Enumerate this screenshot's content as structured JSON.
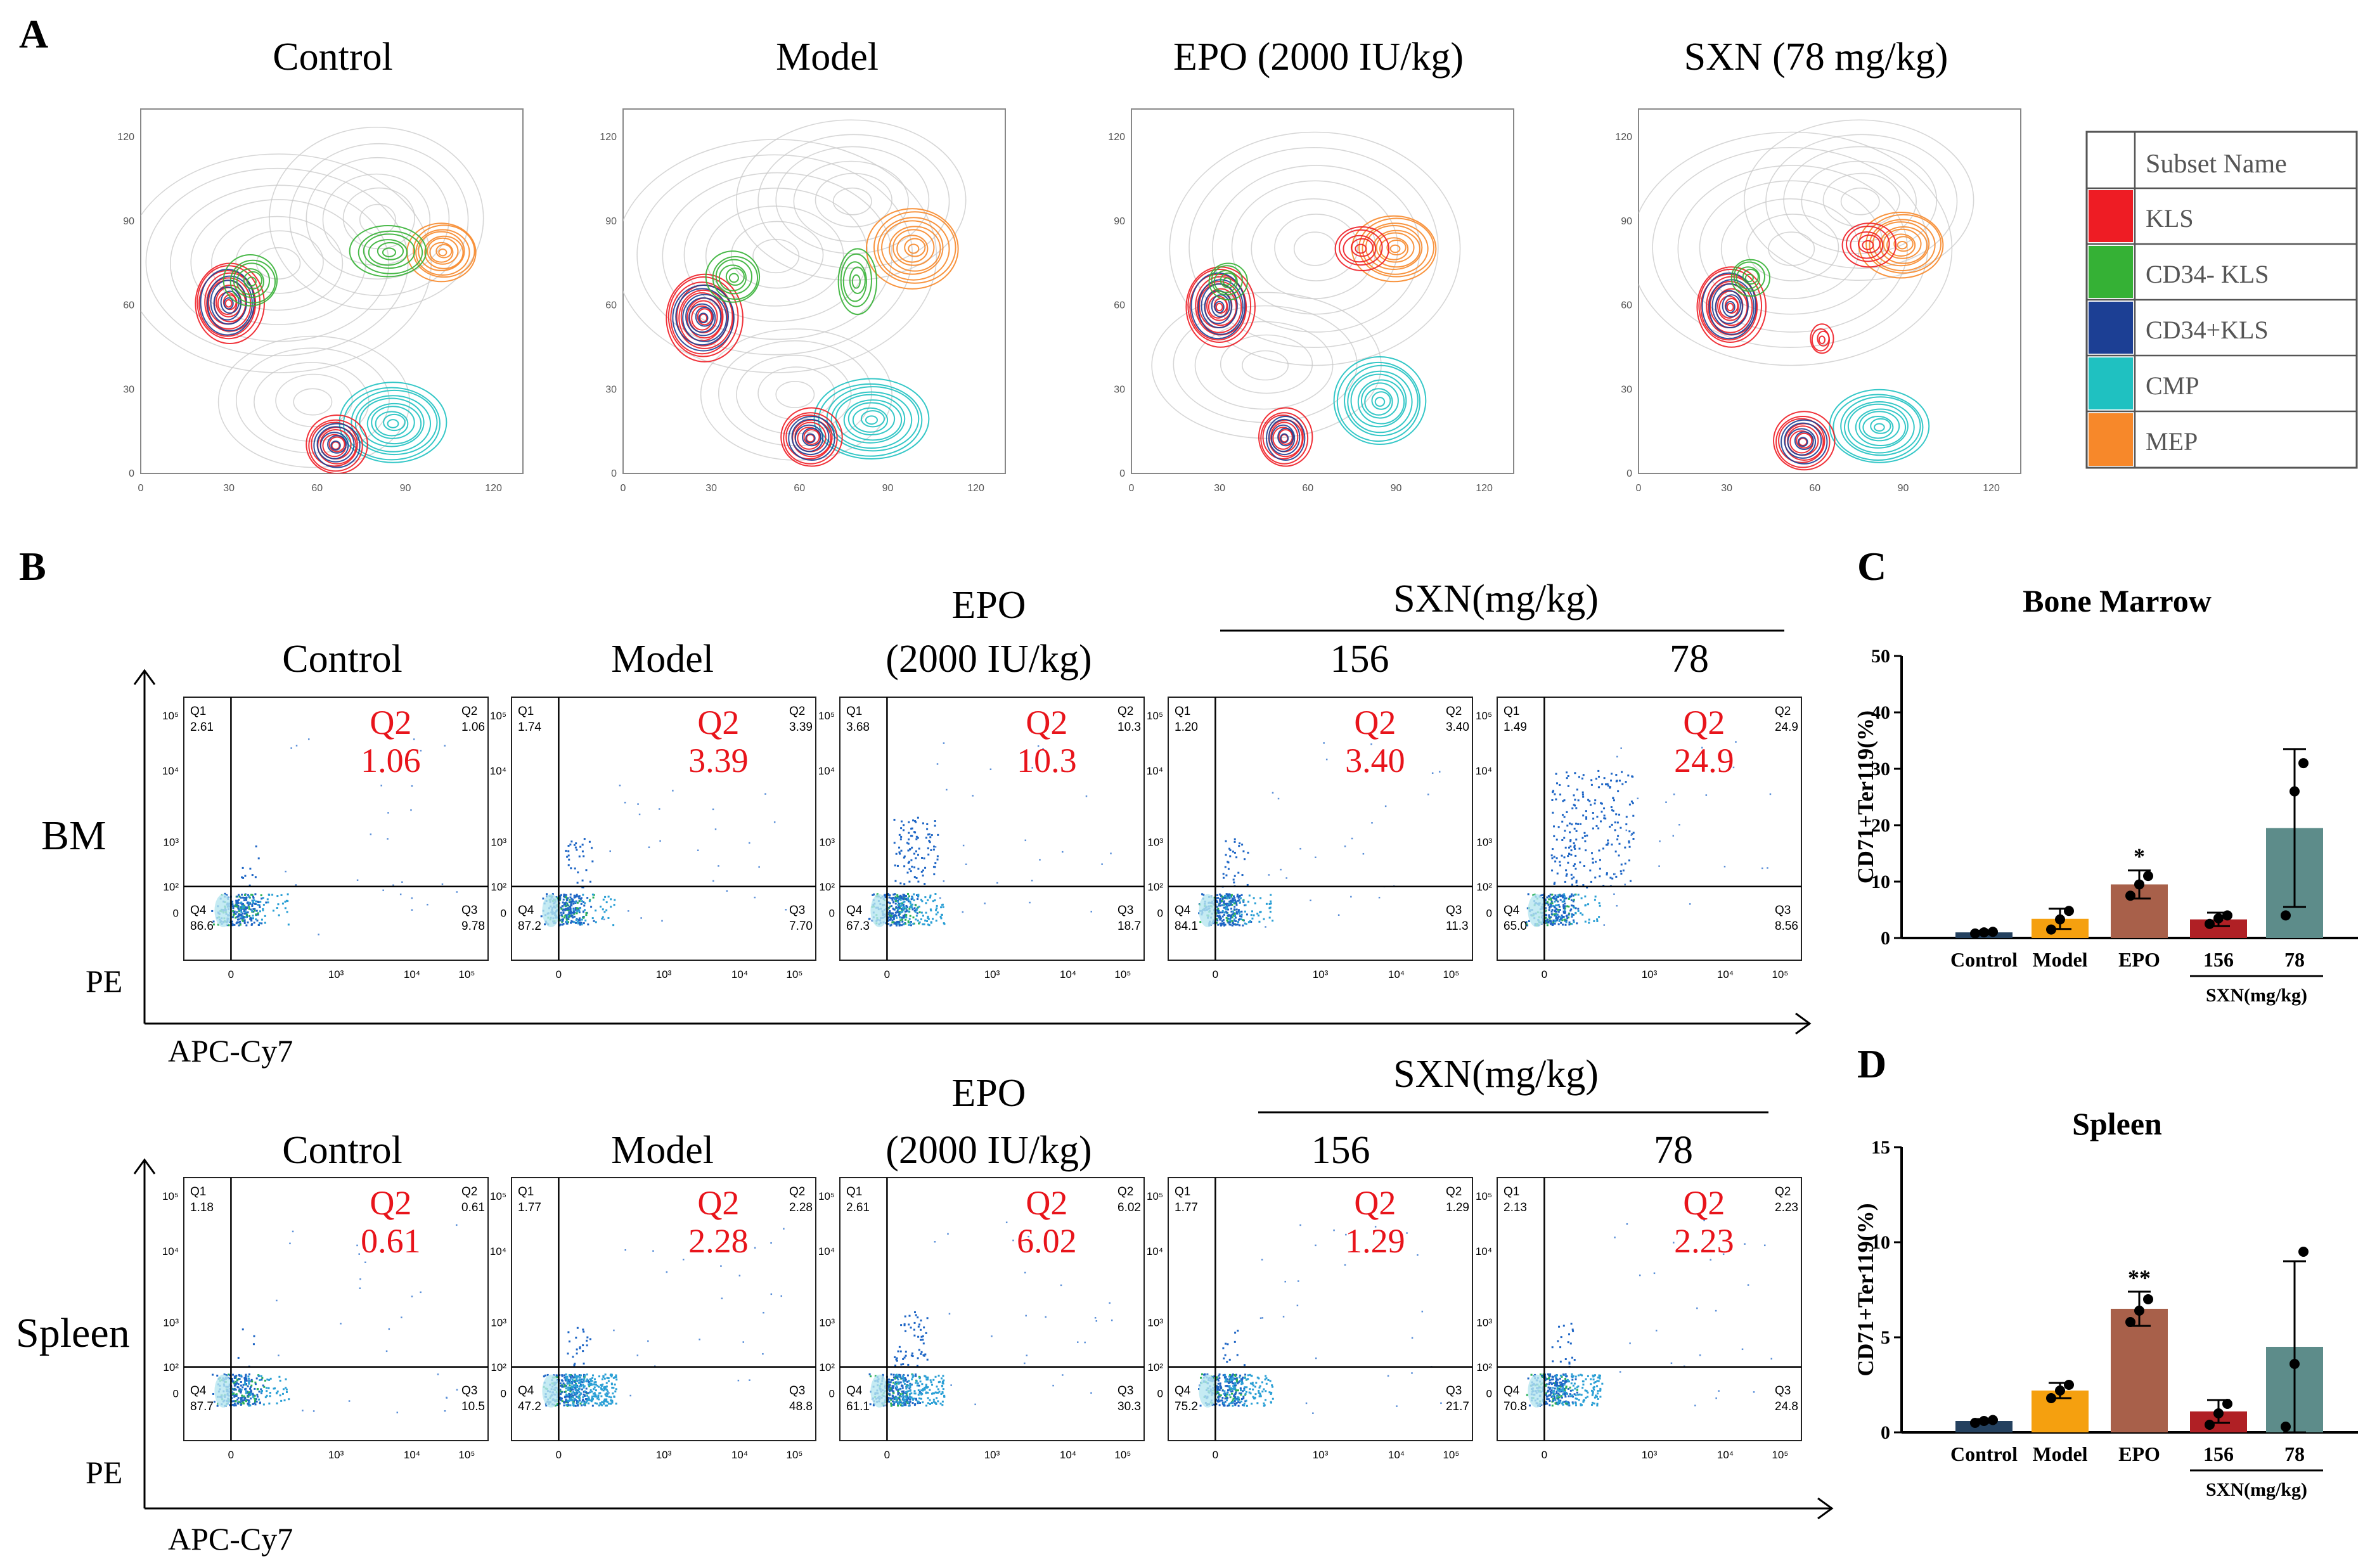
{
  "panel_labels": {
    "a": "A",
    "b": "B",
    "c": "C",
    "d": "D"
  },
  "panel_a": {
    "titles": [
      "Control",
      "Model",
      "EPO (2000 IU/kg)",
      "SXN (78 mg/kg)"
    ],
    "axis_ticks": [
      "0",
      "30",
      "60",
      "90",
      "120"
    ],
    "legend_header": "Subset Name",
    "subsets": [
      {
        "name": "KLS",
        "color": "#ee1c24"
      },
      {
        "name": "CD34- KLS",
        "color": "#35b135"
      },
      {
        "name": "CD34+KLS",
        "color": "#1c3f94"
      },
      {
        "name": "CMP",
        "color": "#1fc1c1"
      },
      {
        "name": "MEP",
        "color": "#f7882a"
      }
    ]
  },
  "panel_b": {
    "row_labels": [
      "BM",
      "Spleen"
    ],
    "x_axis_label": "APC-Cy7",
    "y_axis_label": "PE",
    "group_titles": [
      "Control",
      "Model",
      "EPO",
      "(2000 IU/kg)",
      "156",
      "78"
    ],
    "sxn_header": "SXN(mg/kg)",
    "q2_label": "Q2",
    "quadrant_names": [
      "Q1",
      "Q2",
      "Q3",
      "Q4"
    ],
    "tick_labels": {
      "x": [
        "0",
        "10³",
        "10⁴",
        "10⁵"
      ],
      "y": [
        "10⁵",
        "10⁴",
        "10³",
        "10²",
        "0"
      ]
    },
    "bm": [
      {
        "q1": "2.61",
        "q2": "1.06",
        "q3": "9.78",
        "q4": "86.6"
      },
      {
        "q1": "1.74",
        "q2": "3.39",
        "q3": "7.70",
        "q4": "87.2"
      },
      {
        "q1": "3.68",
        "q2": "10.3",
        "q3": "18.7",
        "q4": "67.3"
      },
      {
        "q1": "1.20",
        "q2": "3.40",
        "q3": "11.3",
        "q4": "84.1"
      },
      {
        "q1": "1.49",
        "q2": "24.9",
        "q3": "8.56",
        "q4": "65.0"
      }
    ],
    "spleen": [
      {
        "q1": "1.18",
        "q2": "0.61",
        "q3": "10.5",
        "q4": "87.7"
      },
      {
        "q1": "1.77",
        "q2": "2.28",
        "q3": "48.8",
        "q4": "47.2"
      },
      {
        "q1": "2.61",
        "q2": "6.02",
        "q3": "30.3",
        "q4": "61.1"
      },
      {
        "q1": "1.77",
        "q2": "1.29",
        "q3": "21.7",
        "q4": "75.2"
      },
      {
        "q1": "2.13",
        "q2": "2.23",
        "q3": "24.8",
        "q4": "70.8"
      }
    ]
  },
  "chart_data": [
    {
      "type": "bar",
      "title": "Bone Marrow",
      "ylabel": "CD71+Ter119(%)",
      "xlabel": "",
      "group_label": "SXN(mg/kg)",
      "categories": [
        "Control",
        "Model",
        "EPO",
        "156",
        "78"
      ],
      "values": [
        1.0,
        3.4,
        9.5,
        3.3,
        19.5
      ],
      "errors": [
        0.3,
        1.8,
        2.5,
        1.2,
        14.0
      ],
      "points": [
        [
          0.8,
          1.0,
          1.1
        ],
        [
          1.5,
          3.3,
          4.8
        ],
        [
          7.5,
          9.5,
          11.0
        ],
        [
          2.5,
          3.5,
          4.0
        ],
        [
          4.0,
          26.0,
          31.0
        ]
      ],
      "colors": [
        "#24415f",
        "#f5a00f",
        "#a8604a",
        "#b02025",
        "#5d8c8a"
      ],
      "significance": [
        "",
        "",
        "*",
        "",
        ""
      ],
      "ylim": [
        0,
        50
      ],
      "yticks": [
        0,
        10,
        20,
        30,
        40,
        50
      ]
    },
    {
      "type": "bar",
      "title": "Spleen",
      "ylabel": "CD71+Ter119(%)",
      "xlabel": "",
      "group_label": "SXN(mg/kg)",
      "categories": [
        "Control",
        "Model",
        "EPO",
        "156",
        "78"
      ],
      "values": [
        0.6,
        2.2,
        6.5,
        1.1,
        4.5
      ],
      "errors": [
        0.1,
        0.4,
        0.9,
        0.6,
        4.5
      ],
      "points": [
        [
          0.5,
          0.6,
          0.65
        ],
        [
          1.8,
          2.2,
          2.5
        ],
        [
          5.8,
          6.4,
          7.0
        ],
        [
          0.4,
          1.0,
          1.5
        ],
        [
          0.3,
          3.6,
          9.5
        ]
      ],
      "colors": [
        "#24415f",
        "#f5a00f",
        "#a8604a",
        "#b02025",
        "#5d8c8a"
      ],
      "significance": [
        "",
        "",
        "**",
        "",
        ""
      ],
      "ylim": [
        0,
        15
      ],
      "yticks": [
        0,
        5,
        10,
        15
      ]
    }
  ]
}
